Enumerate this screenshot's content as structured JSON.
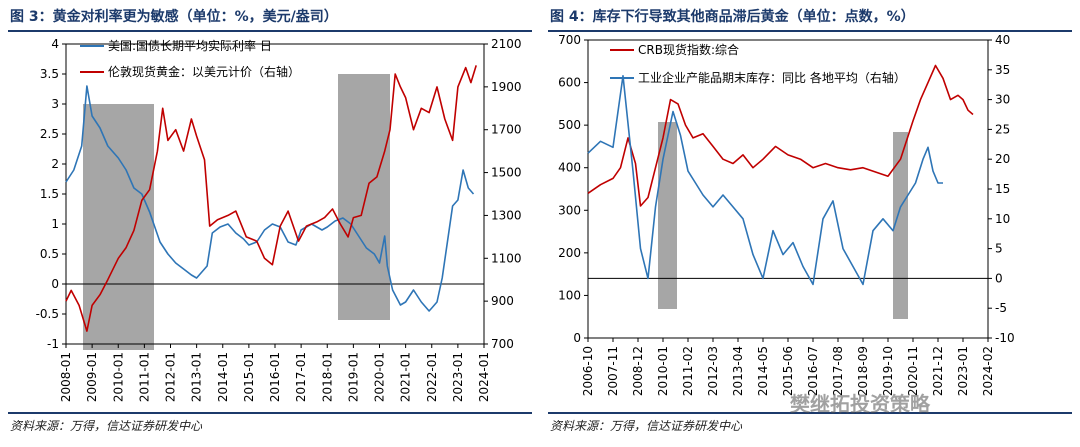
{
  "figures": {
    "left": {
      "title": "图 3：黄金对利率更为敏感（单位：%，美元/盎司）",
      "source": "资料来源：万得，信达证券研发中心"
    },
    "right": {
      "title": "图 4：库存下行导致其他商品滞后黄金（单位：点数，%）",
      "source": "资料来源：万得，信达证券研发中心"
    }
  },
  "watermark": "樊继拓投资策略",
  "colors": {
    "gold": "#c00000",
    "rate": "#2e75b6",
    "shade": "#a6a6a6",
    "title": "#1c3a6b"
  },
  "chart_data": [
    {
      "id": "fig3",
      "type": "line",
      "x_tick_labels": [
        "2008-01",
        "2009-01",
        "2010-01",
        "2011-01",
        "2012-01",
        "2013-01",
        "2014-01",
        "2015-01",
        "2016-01",
        "2017-01",
        "2018-01",
        "2019-01",
        "2020-01",
        "2021-01",
        "2022-01",
        "2023-01",
        "2024-01"
      ],
      "xlim": [
        2008.0,
        2024.0
      ],
      "y_left": {
        "ylim": [
          -1,
          4
        ],
        "ticks": [
          "-1",
          "-0.5",
          "0",
          "0.5",
          "1",
          "1.5",
          "2",
          "2.5",
          "3",
          "3.5",
          "4"
        ]
      },
      "y_right": {
        "ylim": [
          700,
          2100
        ],
        "ticks": [
          "700",
          "900",
          "1100",
          "1300",
          "1500",
          "1700",
          "1900",
          "2100"
        ]
      },
      "shaded_periods": [
        [
          2008.5,
          2011.0
        ],
        [
          2018.9,
          2020.7
        ]
      ],
      "series": [
        {
          "name": "美国:国债长期平均实际利率  日",
          "axis": "left",
          "color": "#2e75b6",
          "x": [
            2008.0,
            2008.3,
            2008.6,
            2008.8,
            2009.0,
            2009.3,
            2009.6,
            2010.0,
            2010.3,
            2010.6,
            2010.9,
            2011.2,
            2011.6,
            2011.9,
            2012.2,
            2012.5,
            2012.8,
            2013.0,
            2013.4,
            2013.6,
            2013.9,
            2014.2,
            2014.5,
            2014.8,
            2015.0,
            2015.3,
            2015.6,
            2015.9,
            2016.2,
            2016.5,
            2016.8,
            2017.0,
            2017.4,
            2017.8,
            2018.0,
            2018.3,
            2018.6,
            2018.9,
            2019.2,
            2019.5,
            2019.8,
            2020.0,
            2020.2,
            2020.3,
            2020.5,
            2020.8,
            2021.0,
            2021.3,
            2021.6,
            2021.9,
            2022.0,
            2022.2,
            2022.4,
            2022.6,
            2022.8,
            2023.0,
            2023.2,
            2023.4,
            2023.6
          ],
          "values": [
            1.7,
            1.9,
            2.3,
            3.3,
            2.8,
            2.6,
            2.3,
            2.1,
            1.9,
            1.6,
            1.5,
            1.2,
            0.7,
            0.5,
            0.35,
            0.25,
            0.15,
            0.1,
            0.3,
            0.85,
            0.95,
            1.0,
            0.85,
            0.75,
            0.65,
            0.7,
            0.9,
            1.0,
            0.95,
            0.7,
            0.65,
            0.9,
            1.0,
            0.9,
            0.95,
            1.05,
            1.1,
            1.0,
            0.8,
            0.6,
            0.5,
            0.35,
            0.8,
            0.3,
            -0.1,
            -0.35,
            -0.3,
            -0.1,
            -0.3,
            -0.45,
            -0.4,
            -0.3,
            0.1,
            0.7,
            1.3,
            1.4,
            1.9,
            1.6,
            1.5
          ]
        },
        {
          "name": "伦敦现货黄金：以美元计价（右轴）",
          "axis": "right",
          "color": "#c00000",
          "x": [
            2008.0,
            2008.2,
            2008.5,
            2008.8,
            2009.0,
            2009.3,
            2009.6,
            2010.0,
            2010.3,
            2010.6,
            2010.9,
            2011.2,
            2011.5,
            2011.7,
            2011.9,
            2012.2,
            2012.5,
            2012.8,
            2013.0,
            2013.3,
            2013.5,
            2013.8,
            2014.2,
            2014.5,
            2014.9,
            2015.3,
            2015.6,
            2015.9,
            2016.2,
            2016.5,
            2016.9,
            2017.2,
            2017.6,
            2017.9,
            2018.2,
            2018.5,
            2018.8,
            2019.0,
            2019.3,
            2019.6,
            2019.9,
            2020.2,
            2020.4,
            2020.6,
            2020.8,
            2021.0,
            2021.3,
            2021.6,
            2021.9,
            2022.2,
            2022.5,
            2022.8,
            2023.0,
            2023.3,
            2023.5,
            2023.7
          ],
          "values": [
            900,
            950,
            880,
            760,
            880,
            930,
            1000,
            1100,
            1150,
            1230,
            1370,
            1420,
            1600,
            1800,
            1650,
            1700,
            1600,
            1750,
            1670,
            1560,
            1250,
            1280,
            1300,
            1320,
            1200,
            1180,
            1100,
            1070,
            1250,
            1320,
            1180,
            1250,
            1270,
            1290,
            1330,
            1260,
            1200,
            1290,
            1300,
            1450,
            1480,
            1600,
            1700,
            1960,
            1900,
            1850,
            1700,
            1800,
            1780,
            1900,
            1750,
            1650,
            1900,
            1990,
            1920,
            2000
          ]
        }
      ]
    },
    {
      "id": "fig4",
      "type": "line",
      "x_tick_labels": [
        "2006-10",
        "2007-11",
        "2008-12",
        "2010-01",
        "2011-02",
        "2012-03",
        "2013-04",
        "2014-05",
        "2015-06",
        "2016-07",
        "2017-08",
        "2018-09",
        "2019-10",
        "2020-11",
        "2021-12",
        "2023-01",
        "2024-02"
      ],
      "y_left": {
        "ylim": [
          0,
          700
        ],
        "ticks": [
          "0",
          "100",
          "200",
          "300",
          "400",
          "500",
          "600",
          "700"
        ]
      },
      "y_right": {
        "ylim": [
          -10,
          40
        ],
        "ticks": [
          "-10",
          "-5",
          "0",
          "5",
          "10",
          "15",
          "20",
          "25",
          "30",
          "35",
          "40"
        ]
      },
      "shaded_periods": [
        [
          "2008-08",
          "2009-06"
        ],
        [
          "2019-12",
          "2020-06"
        ]
      ],
      "series": [
        {
          "name": "CRB现货指数:综合",
          "axis": "left",
          "color": "#c00000",
          "x": [
            0,
            0.5,
            1,
            1.3,
            1.6,
            1.9,
            2.1,
            2.4,
            2.7,
            3,
            3.3,
            3.6,
            3.9,
            4.2,
            4.6,
            5,
            5.4,
            5.8,
            6.2,
            6.6,
            7,
            7.5,
            8,
            8.5,
            9,
            9.5,
            10,
            10.5,
            11,
            11.5,
            12,
            12.5,
            13,
            13.3,
            13.6,
            13.9,
            14.2,
            14.5,
            14.8,
            15.0,
            15.2,
            15.4
          ],
          "values": [
            340,
            360,
            375,
            400,
            470,
            410,
            310,
            330,
            400,
            470,
            560,
            550,
            500,
            470,
            480,
            450,
            420,
            410,
            430,
            400,
            420,
            450,
            430,
            420,
            400,
            410,
            400,
            395,
            400,
            390,
            380,
            420,
            510,
            560,
            600,
            640,
            610,
            560,
            570,
            560,
            535,
            525
          ]
        },
        {
          "name": "工业企业产能品期末库存：同比  各地平均（右轴）",
          "axis": "right",
          "color": "#2e75b6",
          "x": [
            0,
            0.5,
            1,
            1.4,
            1.8,
            2.1,
            2.4,
            2.7,
            3.0,
            3.4,
            3.7,
            4.0,
            4.3,
            4.6,
            5.0,
            5.4,
            5.8,
            6.2,
            6.6,
            7.0,
            7.4,
            7.8,
            8.2,
            8.6,
            9.0,
            9.4,
            9.8,
            10.2,
            10.6,
            11.0,
            11.4,
            11.8,
            12.2,
            12.5,
            12.8,
            13.1,
            13.4,
            13.6,
            13.8,
            14.0,
            14.2
          ],
          "values": [
            21,
            23,
            22,
            34,
            18,
            5,
            0,
            12,
            20,
            28,
            24,
            18,
            16,
            14,
            12,
            14,
            12,
            10,
            4,
            0,
            8,
            4,
            6,
            2,
            -1,
            10,
            13,
            5,
            2,
            -1,
            8,
            10,
            8,
            12,
            14,
            16,
            20,
            22,
            18,
            16,
            16
          ]
        }
      ]
    }
  ]
}
